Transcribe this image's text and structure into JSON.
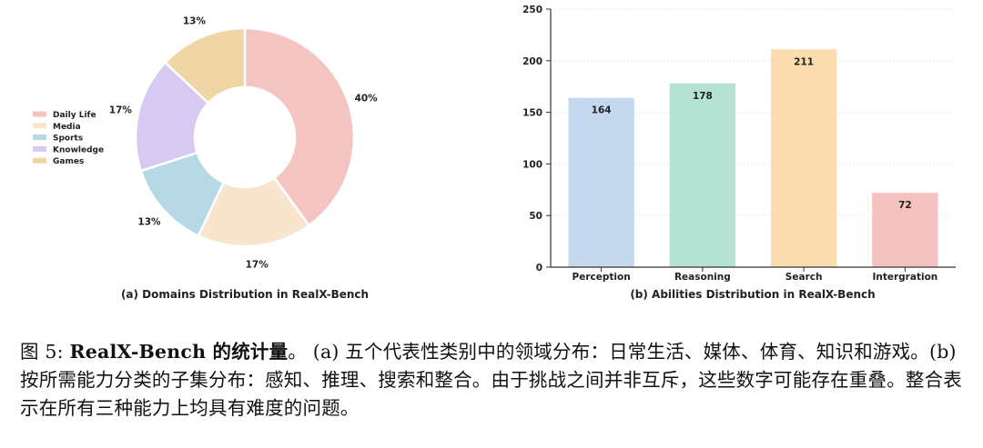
{
  "chart_data": [
    {
      "type": "pie",
      "variant": "donut",
      "caption": "(a) Domains Distribution in RealX-Bench",
      "legend_position": "left",
      "slices": [
        {
          "label": "Daily Life",
          "percent": 40,
          "value_label": "40%",
          "color": "#f4c4c0"
        },
        {
          "label": "Media",
          "percent": 17,
          "value_label": "17%",
          "color": "#f9e4cd"
        },
        {
          "label": "Sports",
          "percent": 13,
          "value_label": "13%",
          "color": "#b7d9e6"
        },
        {
          "label": "Knowledge",
          "percent": 17,
          "value_label": "17%",
          "color": "#d6c9f2"
        },
        {
          "label": "Games",
          "percent": 13,
          "value_label": "13%",
          "color": "#f0d6a4"
        }
      ]
    },
    {
      "type": "bar",
      "caption": "(b) Abilities Distribution in RealX-Bench",
      "categories": [
        "Perception",
        "Reasoning",
        "Search",
        "Intergration"
      ],
      "values": [
        164,
        178,
        211,
        72
      ],
      "colors": [
        "#c5d9ee",
        "#b5e2d3",
        "#fadcaf",
        "#f4c2bf"
      ],
      "ylim": [
        0,
        250
      ],
      "yticks": [
        0,
        50,
        100,
        150,
        200,
        250
      ],
      "grid": true
    }
  ],
  "caption": {
    "figure_label": "图 5:",
    "title": "RealX-Bench 的统计量",
    "title_end": "。",
    "body": " (a) 五个代表性类别中的领域分布：日常生活、媒体、体育、知识和游戏。(b) 按所需能力分类的子集分布：感知、推理、搜索和整合。由于挑战之间并非互斥，这些数字可能存在重叠。整合表示在所有三种能力上均具有难度的问题。"
  }
}
